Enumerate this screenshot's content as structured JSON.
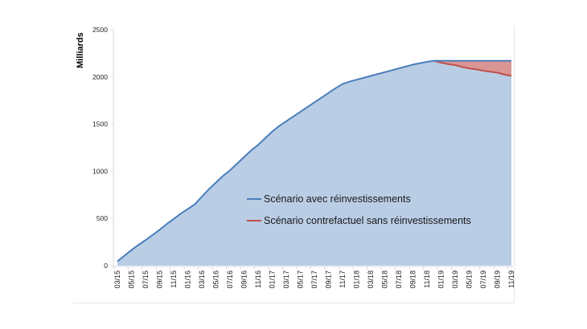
{
  "chart_data": {
    "type": "area",
    "title": "",
    "xlabel": "",
    "ylabel": "Milliards",
    "ylim": [
      0,
      2500
    ],
    "yticks": [
      0,
      500,
      1000,
      1500,
      2000,
      2500
    ],
    "grid": false,
    "legend_position": "inside-center",
    "x_tick_labels": [
      "03/15",
      "05/15",
      "07/15",
      "09/15",
      "11/15",
      "01/16",
      "03/16",
      "05/16",
      "07/16",
      "09/16",
      "11/16",
      "01/17",
      "03/17",
      "05/17",
      "07/17",
      "09/17",
      "11/17",
      "01/18",
      "03/18",
      "05/18",
      "07/18",
      "09/18",
      "11/18",
      "01/19",
      "03/19",
      "05/19",
      "07/19",
      "09/19",
      "11/19"
    ],
    "x": [
      "03/15",
      "04/15",
      "05/15",
      "06/15",
      "07/15",
      "08/15",
      "09/15",
      "10/15",
      "11/15",
      "12/15",
      "01/16",
      "02/16",
      "03/16",
      "04/16",
      "05/16",
      "06/16",
      "07/16",
      "08/16",
      "09/16",
      "10/16",
      "11/16",
      "12/16",
      "01/17",
      "02/17",
      "03/17",
      "04/17",
      "05/17",
      "06/17",
      "07/17",
      "08/17",
      "09/17",
      "10/17",
      "11/17",
      "12/17",
      "01/18",
      "02/18",
      "03/18",
      "04/18",
      "05/18",
      "06/18",
      "07/18",
      "08/18",
      "09/18",
      "10/18",
      "11/18",
      "12/18",
      "01/19",
      "02/19",
      "03/19",
      "04/19",
      "05/19",
      "06/19",
      "07/19",
      "08/19",
      "09/19",
      "10/19",
      "11/19"
    ],
    "series": [
      {
        "name": "Scénario avec réinvestissements",
        "color": "#4a7ebb",
        "fill": "#b9cde5",
        "values": [
          45,
          105,
          165,
          220,
          270,
          325,
          380,
          440,
          495,
          550,
          600,
          650,
          730,
          810,
          880,
          950,
          1010,
          1080,
          1150,
          1220,
          1280,
          1350,
          1420,
          1480,
          1530,
          1580,
          1630,
          1680,
          1730,
          1780,
          1830,
          1880,
          1925,
          1950,
          1970,
          1990,
          2010,
          2030,
          2050,
          2070,
          2090,
          2110,
          2130,
          2145,
          2160,
          2170,
          2170,
          2170,
          2170,
          2170,
          2170,
          2170,
          2170,
          2170,
          2170,
          2170,
          2170
        ]
      },
      {
        "name": "Scénario contrefactuel sans réinvestissements",
        "color": "#c0504d",
        "fill": "#d99594",
        "values": [
          null,
          null,
          null,
          null,
          null,
          null,
          null,
          null,
          null,
          null,
          null,
          null,
          null,
          null,
          null,
          null,
          null,
          null,
          null,
          null,
          null,
          null,
          null,
          null,
          null,
          null,
          null,
          null,
          null,
          null,
          null,
          null,
          null,
          null,
          null,
          null,
          null,
          null,
          null,
          null,
          null,
          null,
          null,
          null,
          null,
          2170,
          2150,
          2135,
          2125,
          2105,
          2090,
          2080,
          2065,
          2055,
          2045,
          2025,
          2010
        ]
      }
    ]
  },
  "legend": {
    "items": [
      {
        "label": "Scénario avec réinvestissements",
        "color": "#4a7ebb"
      },
      {
        "label": "Scénario contrefactuel sans réinvestissements",
        "color": "#c0504d"
      }
    ]
  }
}
